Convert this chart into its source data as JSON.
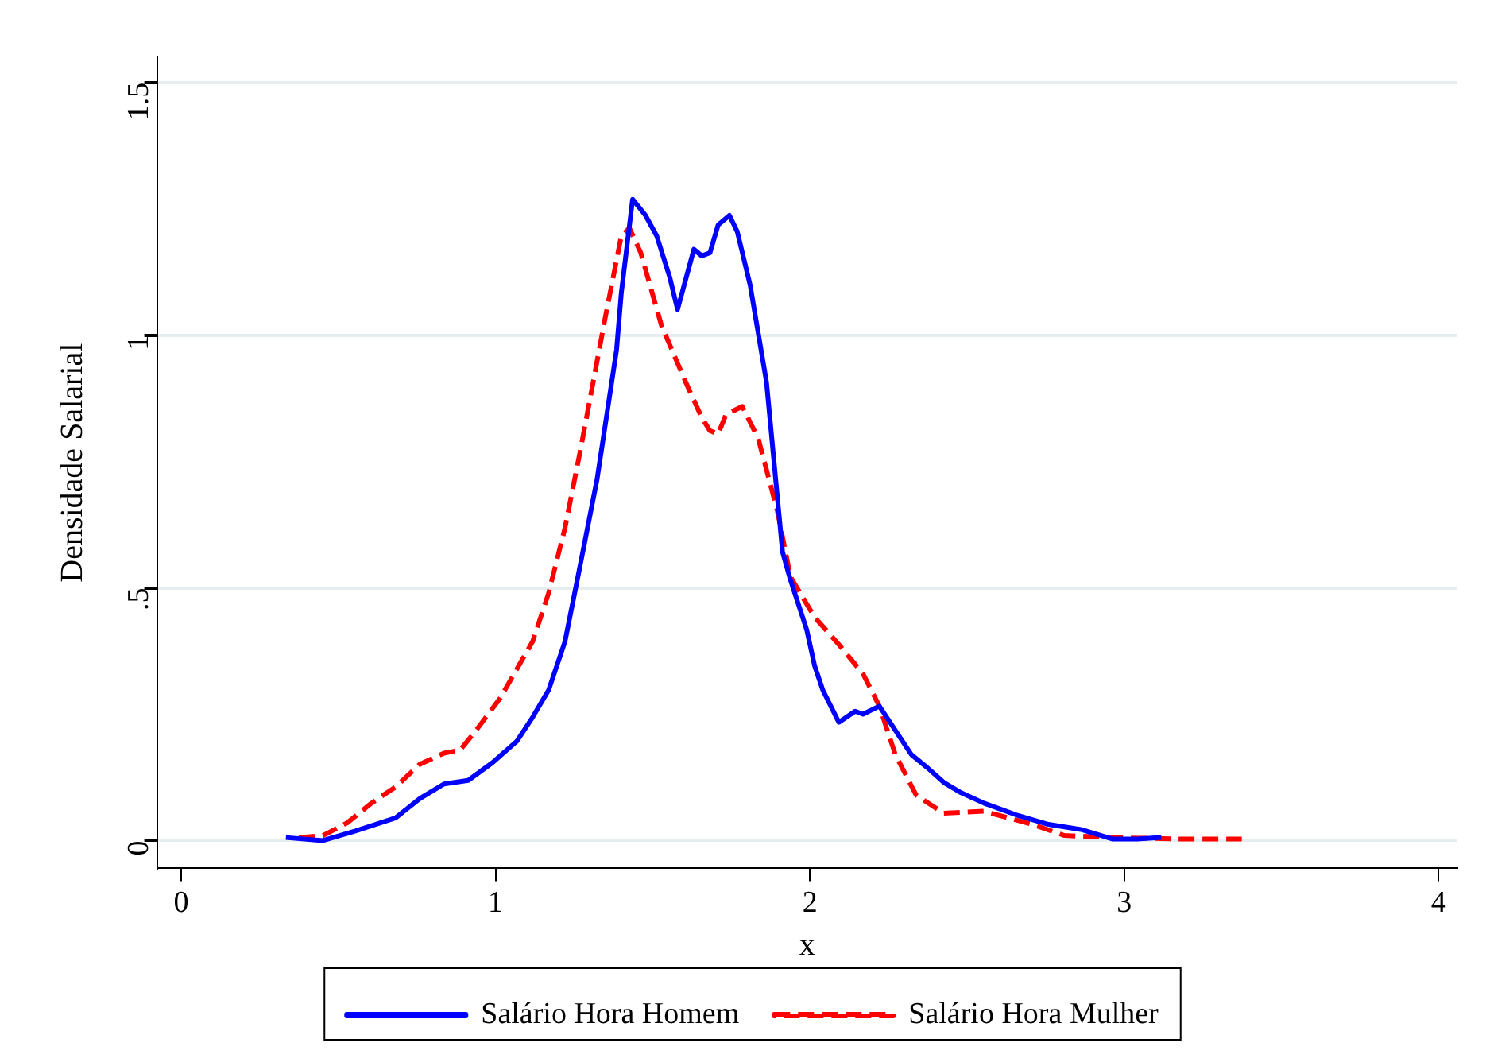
{
  "chart_data": {
    "type": "line",
    "xlabel": "x",
    "ylabel": "Densidade Salarial",
    "xlim": [
      -0.077,
      4.06
    ],
    "xticks": [
      0,
      1,
      2,
      3,
      4
    ],
    "ylim": [
      -0.055,
      1.55
    ],
    "yticks": [
      {
        "value": 0,
        "label": "0"
      },
      {
        "value": 0.5,
        "label": ".5"
      },
      {
        "value": 1,
        "label": "1"
      },
      {
        "value": 1.5,
        "label": "1.5"
      }
    ],
    "grid": "y",
    "legend": "bottom",
    "marker": "none",
    "series": [
      {
        "name": "Salário Hora Homem",
        "color": "#0000ff",
        "line_style": "solid",
        "x": [
          0.333,
          0.451,
          0.554,
          0.682,
          0.759,
          0.836,
          0.913,
          0.99,
          1.067,
          1.118,
          1.169,
          1.221,
          1.262,
          1.323,
          1.385,
          1.4,
          1.436,
          1.477,
          1.513,
          1.554,
          1.579,
          1.631,
          1.656,
          1.682,
          1.708,
          1.744,
          1.769,
          1.81,
          1.862,
          1.913,
          1.938,
          1.99,
          2.015,
          2.041,
          2.092,
          2.144,
          2.169,
          2.221,
          2.272,
          2.323,
          2.374,
          2.426,
          2.477,
          2.554,
          2.656,
          2.759,
          2.862,
          2.964,
          3.041,
          3.118
        ],
        "values": [
          0.006,
          0,
          0.019,
          0.045,
          0.083,
          0.112,
          0.119,
          0.154,
          0.196,
          0.244,
          0.298,
          0.394,
          0.522,
          0.715,
          0.971,
          1.083,
          1.269,
          1.237,
          1.196,
          1.115,
          1.051,
          1.17,
          1.157,
          1.163,
          1.218,
          1.237,
          1.205,
          1.099,
          0.907,
          0.571,
          0.516,
          0.417,
          0.346,
          0.298,
          0.234,
          0.256,
          0.25,
          0.266,
          0.218,
          0.17,
          0.144,
          0.115,
          0.096,
          0.074,
          0.051,
          0.032,
          0.022,
          0.003,
          0.003,
          0.006
        ]
      },
      {
        "name": "Salário Hora Mulher",
        "color": "#ff0000",
        "line_style": "dashed",
        "x": [
          0.374,
          0.451,
          0.528,
          0.605,
          0.682,
          0.759,
          0.836,
          0.887,
          0.938,
          1.015,
          1.118,
          1.169,
          1.221,
          1.272,
          1.349,
          1.4,
          1.426,
          1.462,
          1.528,
          1.605,
          1.656,
          1.682,
          1.708,
          1.733,
          1.785,
          1.836,
          1.897,
          1.938,
          2.015,
          2.092,
          2.169,
          2.221,
          2.272,
          2.338,
          2.426,
          2.554,
          2.708,
          2.81,
          2.964,
          3.169,
          3.374
        ],
        "values": [
          0.006,
          0.01,
          0.035,
          0.074,
          0.106,
          0.151,
          0.173,
          0.179,
          0.218,
          0.282,
          0.394,
          0.49,
          0.619,
          0.779,
          1.035,
          1.196,
          1.212,
          1.163,
          1.019,
          0.907,
          0.837,
          0.811,
          0.804,
          0.843,
          0.859,
          0.795,
          0.651,
          0.522,
          0.442,
          0.388,
          0.33,
          0.266,
          0.17,
          0.09,
          0.054,
          0.058,
          0.032,
          0.01,
          0.006,
          0.003,
          0.003
        ]
      }
    ]
  }
}
